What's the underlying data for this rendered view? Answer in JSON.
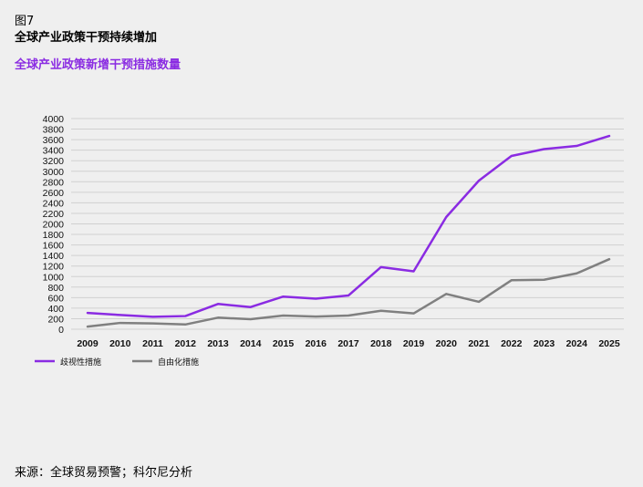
{
  "figure": {
    "label": "图7",
    "title": "全球产业政策干预持续增加",
    "subtitle": "全球产业政策新增干预措施数量",
    "source": "来源：全球贸易预警；科尔尼分析"
  },
  "colors": {
    "background": "#efefef",
    "series_1": "#8a2be2",
    "series_2": "#808080",
    "grid": "#d0d0d0"
  },
  "chart_data": {
    "type": "line",
    "title": "",
    "xlabel": "",
    "ylabel": "",
    "ylim": [
      0,
      4000
    ],
    "y_ticks": [
      0,
      200,
      400,
      600,
      800,
      1000,
      1200,
      1400,
      1600,
      1800,
      2000,
      2200,
      2400,
      2600,
      2800,
      3000,
      3200,
      3400,
      3600,
      3800,
      4000
    ],
    "grid": true,
    "legend_position": "bottom-left",
    "x": [
      "2009",
      "2010",
      "2011",
      "2012",
      "2013",
      "2014",
      "2015",
      "2016",
      "2017",
      "2018",
      "2019",
      "2020",
      "2021",
      "2022",
      "2023",
      "2024",
      "2025"
    ],
    "series": [
      {
        "name": "歧视性措施",
        "color": "#8a2be2",
        "values": [
          310,
          270,
          235,
          250,
          480,
          420,
          620,
          580,
          640,
          1180,
          1100,
          2130,
          2820,
          3290,
          3420,
          3480,
          3670
        ]
      },
      {
        "name": "自由化措施",
        "color": "#808080",
        "values": [
          50,
          120,
          110,
          90,
          220,
          190,
          260,
          240,
          260,
          350,
          300,
          670,
          520,
          930,
          940,
          1060,
          1330
        ]
      }
    ]
  }
}
